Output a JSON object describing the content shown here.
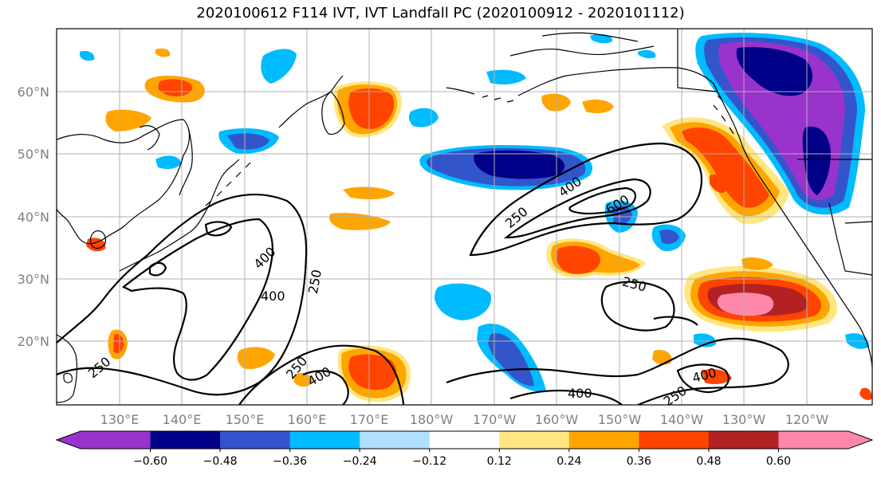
{
  "title": "2020100612 F114 IVT, IVT Landfall PC (2020100912 - 2020101112)",
  "map": {
    "lat_labels": [
      "60°N",
      "50°N",
      "40°N",
      "30°N",
      "20°N"
    ],
    "lon_labels": [
      "130°E",
      "140°E",
      "150°E",
      "160°E",
      "170°E",
      "180°W",
      "170°W",
      "160°W",
      "150°W",
      "140°W",
      "130°W",
      "120°W"
    ],
    "contour_labels": [
      "400",
      "600",
      "250",
      "400",
      "250",
      "400",
      "250",
      "250",
      "400",
      "250",
      "400",
      "250",
      "400"
    ]
  },
  "colorbar": {
    "colors": [
      "#9933cc",
      "#000088",
      "#3355cc",
      "#00bbff",
      "#b0e0ff",
      "#ffffff",
      "#ffe680",
      "#ffa500",
      "#ff4400",
      "#b22222",
      "#ff88aa"
    ],
    "tick_labels": [
      "−0.60",
      "−0.48",
      "−0.36",
      "−0.24",
      "−0.12",
      "0.12",
      "0.24",
      "0.36",
      "0.48",
      "0.60"
    ]
  },
  "colors": {
    "grid": "#b0b0b0",
    "coast": "#000000"
  }
}
